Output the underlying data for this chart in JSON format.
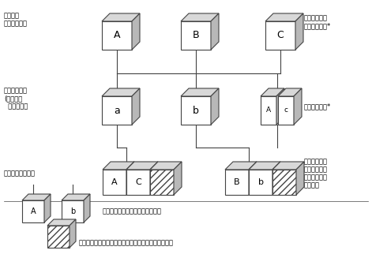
{
  "bg_color": "#ffffff",
  "text_color": "#000000",
  "line_color": "#444444",
  "labels": {
    "row1_left_1": "标准层次",
    "row1_left_2": "基础安全标准",
    "row2_left_1": "专项安全标准",
    "row2_left_2": "(指元件或",
    "row2_left_3": "  专项产品）",
    "row3_left": "具体产品安全标准",
    "top_right_1": "制定标准依据",
    "top_right_2": "安全指导职能*",
    "mid_right": "安全专项职能*",
    "bot_right_1": "技术委员会或",
    "bot_right_2": "分技术委员会",
    "bot_right_3": "的名称或所涉",
    "bot_right_4": "及的范围",
    "legend1": "引用安全基础标准或安全专项标准",
    "legend2": "由有关技术委员会或分技术委员会独立制定的安全要求"
  }
}
